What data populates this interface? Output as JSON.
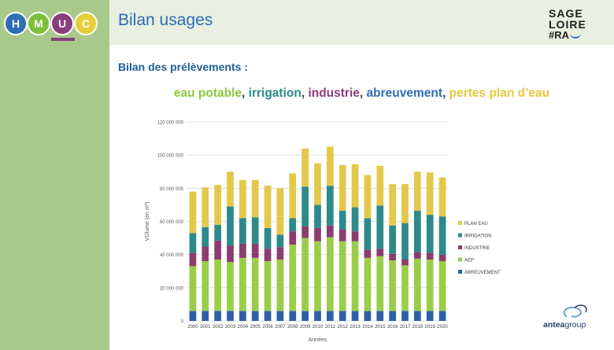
{
  "logo": {
    "letters": [
      "H",
      "M",
      "U",
      "C"
    ]
  },
  "header": {
    "title": "Bilan usages"
  },
  "sage_logo": {
    "line1": "SAGE",
    "line2": "LOIRE",
    "line3": "#RA"
  },
  "subtitle": "Bilan des prélèvements :",
  "usage_legend": {
    "eau_potable": "eau potable",
    "irrigation": "irrigation",
    "industrie": "industrie",
    "abreuvement": "abreuvement",
    "pertes": "pertes plan d’eau",
    "sep": ","
  },
  "footer_logo": {
    "part1": "antea",
    "part2": "group"
  },
  "chart_data": {
    "type": "bar",
    "stacked": true,
    "xlabel": "Années",
    "ylabel": "VOlume (en m³)",
    "ylim": [
      0,
      120000000
    ],
    "yticks": [
      0,
      20000000,
      40000000,
      60000000,
      80000000,
      100000000,
      120000000
    ],
    "ytick_labels": [
      "0",
      "20 000 000",
      "40 000 000",
      "60 000 000",
      "80 000 000",
      "100 000 000",
      "120 000 000"
    ],
    "grid": true,
    "legend_position": "right",
    "categories": [
      "2000",
      "2001",
      "2002",
      "2003",
      "2004",
      "2005",
      "2006",
      "2007",
      "2008",
      "2009",
      "2010",
      "2011",
      "2012",
      "2013",
      "2014",
      "2015",
      "2016",
      "2017",
      "2018",
      "2019",
      "2020"
    ],
    "series": [
      {
        "name": "ABREUVEMENT",
        "color": "#2e5fa8",
        "values": [
          6000000,
          6000000,
          6000000,
          6000000,
          6000000,
          6000000,
          6000000,
          6000000,
          6000000,
          6000000,
          6000000,
          6000000,
          6000000,
          6000000,
          6000000,
          6000000,
          6000000,
          6000000,
          6000000,
          6000000,
          6000000
        ]
      },
      {
        "name": "AEP",
        "color": "#9acd4a",
        "values": [
          27000000,
          30000000,
          31000000,
          29500000,
          32000000,
          32000000,
          30000000,
          31000000,
          40000000,
          44000000,
          42000000,
          44500000,
          42000000,
          42000000,
          32000000,
          33000000,
          30500000,
          27500000,
          31500000,
          31000000,
          30000000
        ]
      },
      {
        "name": "INDUSTRIE",
        "color": "#8a3d6e",
        "values": [
          8000000,
          9000000,
          11500000,
          10000000,
          8500000,
          8500000,
          7500000,
          7500000,
          8000000,
          7000000,
          8000000,
          7000000,
          7000000,
          6000000,
          5000000,
          4500000,
          4000000,
          3500000,
          4000000,
          4000000,
          4000000
        ]
      },
      {
        "name": "IRRIGATION",
        "color": "#2e8a8a",
        "values": [
          12000000,
          11500000,
          9500000,
          23500000,
          15500000,
          16000000,
          12500000,
          7500000,
          8000000,
          24000000,
          14000000,
          24000000,
          11500000,
          14500000,
          19000000,
          26000000,
          17000000,
          22000000,
          25000000,
          23000000,
          23000000
        ]
      },
      {
        "name": "PLAN EAU",
        "color": "#e3c84a",
        "values": [
          25000000,
          24000000,
          24000000,
          21000000,
          23000000,
          22500000,
          25500000,
          28000000,
          27000000,
          23000000,
          25000000,
          23500000,
          27500000,
          26000000,
          26000000,
          24000000,
          25000000,
          23500000,
          23500000,
          25500000,
          23500000
        ]
      }
    ]
  }
}
